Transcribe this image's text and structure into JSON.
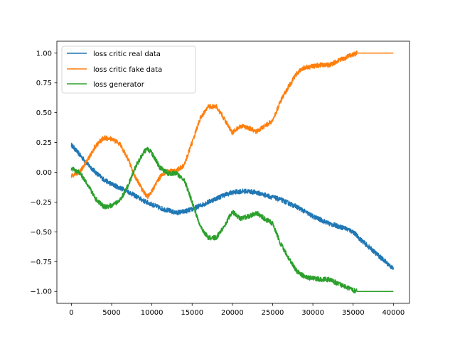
{
  "chart_data": {
    "type": "line",
    "title": "",
    "xlabel": "",
    "ylabel": "",
    "xlim": [
      -1800,
      42000
    ],
    "ylim": [
      -1.1,
      1.1
    ],
    "xticks": [
      0,
      5000,
      10000,
      15000,
      20000,
      25000,
      30000,
      35000,
      40000
    ],
    "xtick_labels": [
      "0",
      "5000",
      "10000",
      "15000",
      "20000",
      "25000",
      "30000",
      "35000",
      "40000"
    ],
    "yticks": [
      -1.0,
      -0.75,
      -0.5,
      -0.25,
      0.0,
      0.25,
      0.5,
      0.75,
      1.0
    ],
    "ytick_labels": [
      "−1.00",
      "−0.75",
      "−0.50",
      "−0.25",
      "0.00",
      "0.25",
      "0.50",
      "0.75",
      "1.00"
    ],
    "grid": false,
    "legend_position": "top-left",
    "series": [
      {
        "name": "loss critic real data",
        "color": "#1f77b4",
        "noise": 0.02,
        "x": [
          0,
          1000,
          2000,
          3000,
          4000,
          5000,
          6000,
          7000,
          8000,
          9000,
          10000,
          11000,
          12000,
          13000,
          14000,
          15000,
          16000,
          17000,
          18000,
          19000,
          20000,
          21000,
          22000,
          23000,
          24000,
          25000,
          26000,
          27000,
          28000,
          29000,
          30000,
          31000,
          32000,
          33000,
          34000,
          35000,
          36000,
          37000,
          38000,
          39000,
          40000
        ],
        "y": [
          0.23,
          0.15,
          0.07,
          0.0,
          -0.06,
          -0.1,
          -0.13,
          -0.16,
          -0.2,
          -0.24,
          -0.27,
          -0.3,
          -0.32,
          -0.34,
          -0.33,
          -0.31,
          -0.28,
          -0.25,
          -0.22,
          -0.19,
          -0.17,
          -0.16,
          -0.16,
          -0.17,
          -0.19,
          -0.21,
          -0.23,
          -0.26,
          -0.29,
          -0.33,
          -0.37,
          -0.4,
          -0.43,
          -0.45,
          -0.47,
          -0.5,
          -0.57,
          -0.63,
          -0.69,
          -0.75,
          -0.81
        ]
      },
      {
        "name": "loss critic fake data",
        "color": "#ff7f0e",
        "noise": 0.02,
        "x": [
          0,
          1000,
          2000,
          3000,
          4000,
          5000,
          6000,
          7000,
          8000,
          9000,
          9500,
          10000,
          11000,
          12000,
          13000,
          14000,
          15000,
          16000,
          17000,
          18000,
          19000,
          20000,
          21000,
          22000,
          23000,
          24000,
          25000,
          26000,
          27000,
          28000,
          29000,
          30000,
          31000,
          32000,
          33000,
          34000,
          35000,
          35500,
          36000,
          37000,
          38000,
          39000,
          40000
        ],
        "y": [
          -0.03,
          0.0,
          0.1,
          0.22,
          0.29,
          0.28,
          0.24,
          0.12,
          -0.05,
          -0.17,
          -0.2,
          -0.16,
          -0.04,
          0.01,
          0.01,
          0.06,
          0.25,
          0.45,
          0.55,
          0.55,
          0.45,
          0.33,
          0.39,
          0.37,
          0.34,
          0.39,
          0.43,
          0.6,
          0.72,
          0.83,
          0.88,
          0.89,
          0.9,
          0.9,
          0.93,
          0.96,
          0.99,
          1.0,
          1.0,
          1.0,
          1.0,
          1.0,
          1.0
        ]
      },
      {
        "name": "loss generator",
        "color": "#2ca02c",
        "noise": 0.02,
        "x": [
          0,
          1000,
          2000,
          3000,
          4000,
          5000,
          6000,
          7000,
          8000,
          9000,
          9500,
          10000,
          11000,
          12000,
          13000,
          14000,
          15000,
          16000,
          17000,
          18000,
          19000,
          20000,
          21000,
          22000,
          23000,
          24000,
          25000,
          26000,
          27000,
          28000,
          29000,
          30000,
          31000,
          32000,
          33000,
          34000,
          35000,
          35500,
          36000,
          37000,
          38000,
          39000,
          40000
        ],
        "y": [
          0.03,
          0.0,
          -0.1,
          -0.22,
          -0.29,
          -0.28,
          -0.24,
          -0.12,
          0.05,
          0.17,
          0.2,
          0.16,
          0.04,
          -0.01,
          -0.01,
          -0.06,
          -0.25,
          -0.45,
          -0.55,
          -0.55,
          -0.45,
          -0.33,
          -0.39,
          -0.37,
          -0.34,
          -0.39,
          -0.43,
          -0.6,
          -0.72,
          -0.83,
          -0.88,
          -0.89,
          -0.9,
          -0.9,
          -0.93,
          -0.96,
          -0.99,
          -1.0,
          -1.0,
          -1.0,
          -1.0,
          -1.0,
          -1.0
        ]
      }
    ]
  }
}
